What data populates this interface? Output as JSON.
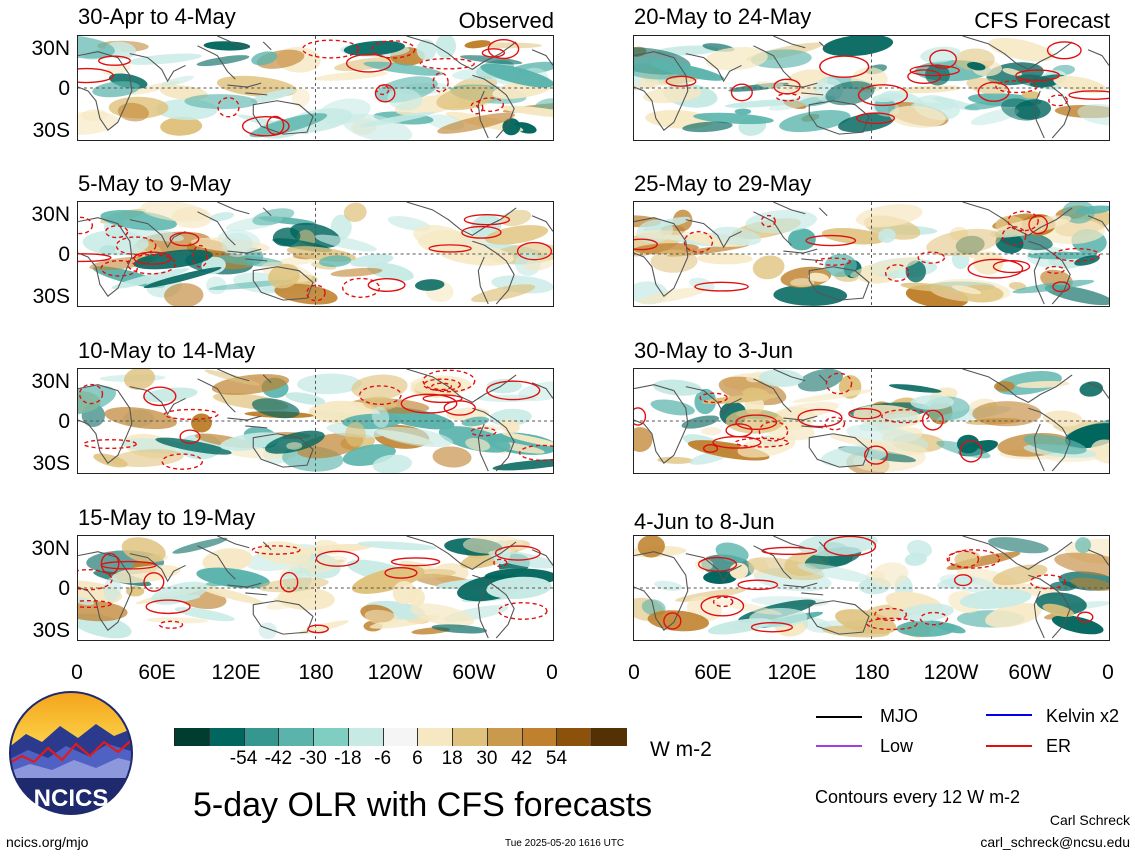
{
  "colors": {
    "contour": "#e01010",
    "land": "#555555",
    "wet_dark": "#01665e",
    "wet_mid": "#5ab4ac",
    "wet_light": "#c7eae5",
    "dry_light": "#f6e8c3",
    "dry_mid": "#dfc27d",
    "dry_dark": "#bf812d"
  },
  "panel_tags": {
    "observed": "Observed",
    "forecast": "CFS Forecast"
  },
  "panels": [
    {
      "title": "30-Apr to 4-May"
    },
    {
      "title": "20-May to 24-May"
    },
    {
      "title": "5-May to 9-May"
    },
    {
      "title": "25-May to 29-May"
    },
    {
      "title": "10-May to 14-May"
    },
    {
      "title": "30-May to 3-Jun"
    },
    {
      "title": "15-May to 19-May"
    },
    {
      "title": "4-Jun to 8-Jun"
    }
  ],
  "lat_ticks": [
    "30N",
    "0",
    "30S"
  ],
  "lon_ticks": [
    "0",
    "60E",
    "120E",
    "180",
    "120W",
    "60W",
    "0"
  ],
  "colorbar": {
    "colors": [
      "#003c30",
      "#01665e",
      "#35978f",
      "#5ab4ac",
      "#80cdc1",
      "#c7eae5",
      "#f5f5f5",
      "#f6e8c3",
      "#dfc27d",
      "#c99a4e",
      "#bf812d",
      "#8c510a",
      "#543005"
    ],
    "labels": [
      "-54",
      "-42",
      "-30",
      "-18",
      "-6",
      "6",
      "18",
      "30",
      "42",
      "54"
    ],
    "units": "W m-2"
  },
  "legend": {
    "items": [
      {
        "label": "MJO",
        "color": "#000000"
      },
      {
        "label": "Kelvin x2",
        "color": "#0000ee"
      },
      {
        "label": "Low",
        "color": "#a040e0"
      },
      {
        "label": "ER",
        "color": "#e01010"
      }
    ],
    "contours_note": "Contours every 12 W m-2"
  },
  "title": "5-day OLR with CFS forecasts",
  "logo_text": "NCICS",
  "footer": {
    "url": "ncics.org/mjo",
    "timestamp": "Tue 2025-05-20 1616 UTC",
    "author": "Carl Schreck",
    "email": "carl_schreck@ncsu.edu"
  }
}
